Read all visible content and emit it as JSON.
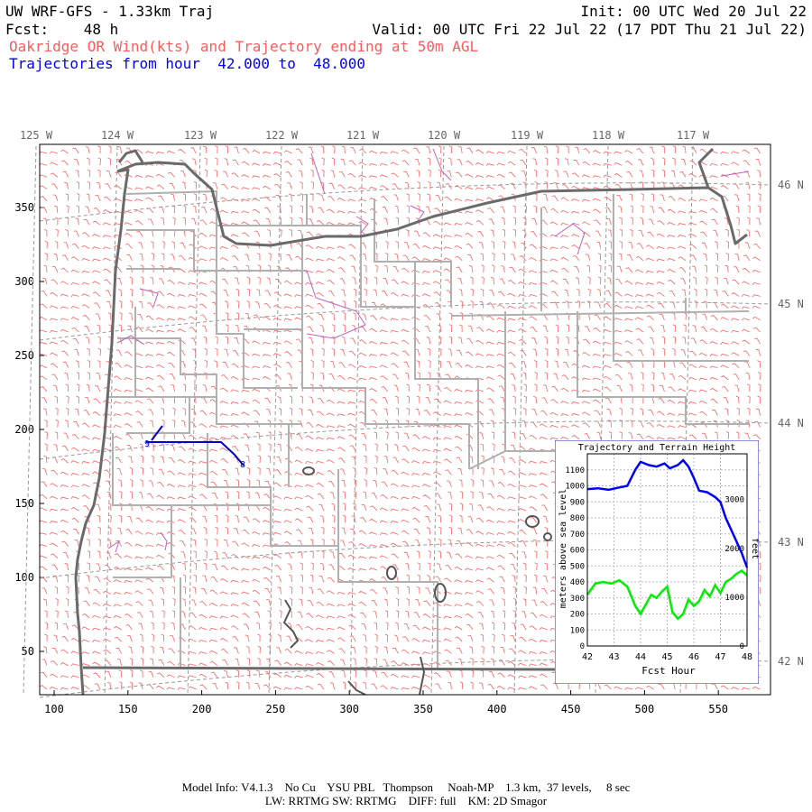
{
  "header": {
    "model_title": "UW WRF-GFS - 1.33km Traj",
    "init": "Init: 00 UTC Wed 20 Jul 22",
    "fcst_label": "Fcst:",
    "fcst_value": "48 h",
    "valid": "Valid: 00 UTC Fri 22 Jul 22 (17 PDT Thu 21 Jul 22)",
    "subtitle": "Oakridge OR Wind(kts) and Trajectory ending at 50m AGL",
    "traj_prefix": "Trajectories from hour",
    "traj_from": "42.000",
    "traj_to_word": "to",
    "traj_to": "48.000"
  },
  "map": {
    "lon_labels": [
      "125 W",
      "124 W",
      "123 W",
      "122 W",
      "121 W",
      "120 W",
      "119 W",
      "118 W",
      "117 W"
    ],
    "lat_labels": [
      "46 N",
      "45 N",
      "44 N",
      "43 N",
      "42 N"
    ],
    "x_ticks": [
      "100",
      "150",
      "200",
      "250",
      "300",
      "350",
      "400",
      "450",
      "500",
      "550"
    ],
    "y_ticks": [
      "50",
      "100",
      "150",
      "200",
      "250",
      "300",
      "350"
    ],
    "traj_start_label": "9",
    "traj_end_label": "8",
    "colors": {
      "wind_barbs": "#ff6060",
      "state_border": "#6a6a6a",
      "county_border": "#b0b0b0",
      "water": "#c060c0",
      "trajectory": "#0000cc"
    }
  },
  "chart_data": {
    "type": "line",
    "title": "Trajectory and Terrain Height",
    "xlabel": "Fcst Hour",
    "ylabel_left": "meters above sea level",
    "ylabel_right": "feet",
    "xlim": [
      42,
      48
    ],
    "ylim": [
      0,
      1200
    ],
    "x_ticks": [
      "42",
      "43",
      "44",
      "45",
      "46",
      "47",
      "48"
    ],
    "y_ticks": [
      "0",
      "100",
      "200",
      "300",
      "400",
      "500",
      "600",
      "700",
      "800",
      "900",
      "1000",
      "1100"
    ],
    "right_ticks": [
      "0",
      "1000",
      "2000",
      "3000"
    ],
    "grid": true,
    "series": [
      {
        "color": "#0000ff",
        "x": [
          42.0,
          42.4,
          42.8,
          43.2,
          43.5,
          43.8,
          44.0,
          44.3,
          44.6,
          44.9,
          45.1,
          45.4,
          45.6,
          45.8,
          46.0,
          46.2,
          46.5,
          46.8,
          47.0,
          47.2,
          47.5,
          47.8,
          48.0
        ],
        "y": [
          980,
          985,
          975,
          990,
          1000,
          1100,
          1150,
          1130,
          1120,
          1140,
          1110,
          1130,
          1160,
          1120,
          1050,
          970,
          960,
          930,
          900,
          800,
          690,
          580,
          490
        ]
      },
      {
        "color": "#00ee00",
        "x": [
          42.0,
          42.3,
          42.6,
          42.9,
          43.2,
          43.5,
          43.8,
          44.0,
          44.2,
          44.4,
          44.6,
          44.8,
          45.0,
          45.2,
          45.4,
          45.6,
          45.8,
          46.0,
          46.2,
          46.4,
          46.6,
          46.8,
          47.0,
          47.2,
          47.4,
          47.6,
          47.8,
          48.0
        ],
        "y": [
          320,
          390,
          400,
          390,
          410,
          370,
          250,
          200,
          260,
          320,
          300,
          340,
          370,
          210,
          170,
          200,
          290,
          250,
          280,
          350,
          310,
          380,
          330,
          400,
          420,
          450,
          470,
          440
        ]
      }
    ]
  },
  "footer": {
    "line1": "Model Info: V4.1.3    No Cu    YSU PBL   Thompson     Noah-MP    1.3 km,  37 levels,     8 sec",
    "line2": "LW: RRTMG SW: RRTMG    DIFF: full    KM: 2D Smagor"
  }
}
